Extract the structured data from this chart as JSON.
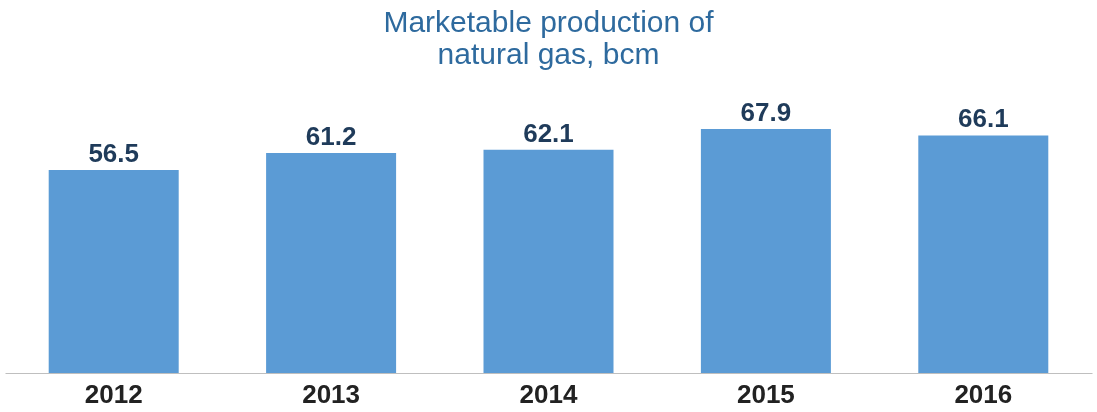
{
  "chart_data": {
    "type": "bar",
    "title": [
      "Marketable production of",
      "natural gas, bcm"
    ],
    "categories": [
      "2012",
      "2013",
      "2014",
      "2015",
      "2016"
    ],
    "values": [
      56.5,
      61.2,
      62.1,
      67.9,
      66.1
    ],
    "color": "#5b9bd5",
    "data_labels": true,
    "grid": false
  }
}
